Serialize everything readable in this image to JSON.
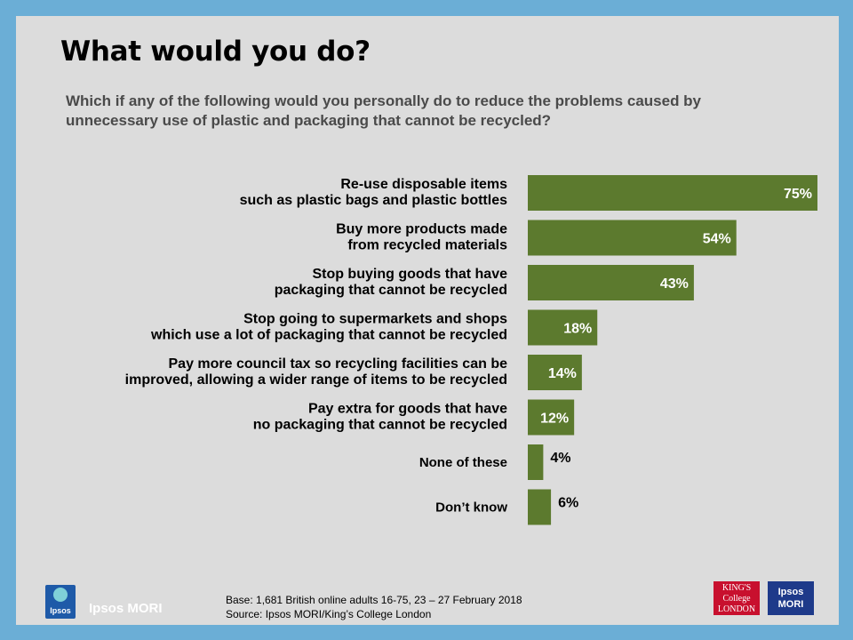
{
  "title": "What would you do?",
  "subtitle": "Which if any of the following would you personally do to reduce the problems caused by unnecessary use of plastic and packaging that cannot be recycled?",
  "chart_data": {
    "type": "bar",
    "orientation": "horizontal",
    "categories": [
      [
        "Re-use disposable items",
        "such as plastic bags and plastic bottles"
      ],
      [
        "Buy more products made",
        "from recycled materials"
      ],
      [
        "Stop buying goods that have",
        "packaging that cannot be recycled"
      ],
      [
        "Stop going to supermarkets and shops",
        "which use a lot of packaging that cannot be recycled"
      ],
      [
        "Pay more council tax so recycling facilities can be",
        "improved, allowing a wider range of items to be recycled"
      ],
      [
        "Pay extra for goods that have",
        "no packaging that cannot be recycled"
      ],
      [
        "None of these"
      ],
      [
        "Don’t know"
      ]
    ],
    "values": [
      75,
      54,
      43,
      18,
      14,
      12,
      4,
      6
    ],
    "value_labels": [
      "75%",
      "54%",
      "43%",
      "18%",
      "14%",
      "12%",
      "4%",
      "6%"
    ],
    "unit": "%",
    "bar_color": "#5c7a2e",
    "label_color_inside": "#ffffff",
    "label_color_outside": "#000000",
    "xlim": [
      0,
      75
    ],
    "grid": false,
    "legend": "none"
  },
  "branding": {
    "left_logo_text": "Ipsos",
    "brand_name": "Ipsos MORI",
    "kcl_logo_lines": [
      "KING'S",
      "College",
      "LONDON"
    ],
    "mori_logo_lines": [
      "Ipsos",
      "MORI"
    ]
  },
  "footnote": {
    "base": "Base: 1,681 British online adults 16-75, 23 – 27 February 2018",
    "source": "Source: Ipsos MORI/King’s College London"
  }
}
